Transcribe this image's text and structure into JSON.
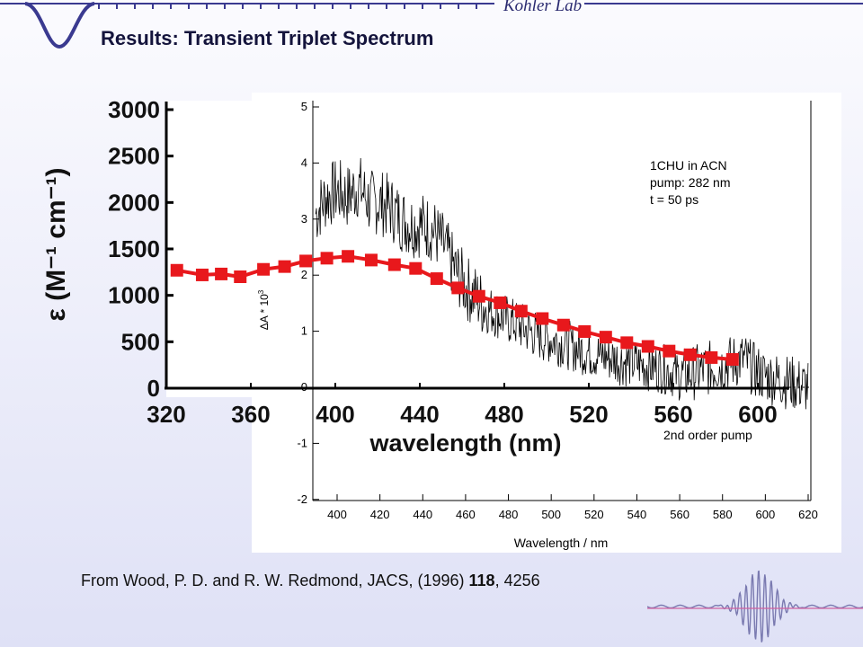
{
  "slide": {
    "title": "Results: Transient Triplet Spectrum",
    "lab_name": "Kohler Lab",
    "caption_prefix": "From Wood, P. D. and R. W. Redmond, JACS, (1996) ",
    "caption_volume": "118",
    "caption_suffix": ", 4256"
  },
  "chart_data": [
    {
      "type": "scatter",
      "title": "",
      "xlabel": "wavelength (nm)",
      "ylabel": "ε (M⁻¹ cm⁻¹)",
      "xlim": [
        320,
        620
      ],
      "ylim": [
        0,
        3000
      ],
      "x_ticks": [
        "320",
        "360",
        "400",
        "440",
        "480",
        "520",
        "560",
        "600"
      ],
      "y_ticks": [
        "0",
        "500",
        "1000",
        "1500",
        "2000",
        "2500",
        "3000"
      ],
      "series": [
        {
          "name": "",
          "color": "#e8181c",
          "marker": "square",
          "x": [
            325,
            337,
            346,
            355,
            366,
            376,
            386,
            396,
            406,
            417,
            428,
            438,
            448,
            458,
            468,
            478,
            488,
            498,
            508,
            518,
            528,
            538,
            548,
            558,
            568,
            578,
            588
          ],
          "y": [
            1270,
            1220,
            1230,
            1200,
            1280,
            1310,
            1370,
            1400,
            1420,
            1380,
            1330,
            1290,
            1180,
            1080,
            990,
            920,
            830,
            750,
            680,
            610,
            550,
            490,
            450,
            400,
            360,
            330,
            310
          ]
        }
      ]
    },
    {
      "type": "line",
      "title": "",
      "xlabel": "Wavelength / nm",
      "ylabel": "ΔA * 10",
      "ylabel_superscript": "3",
      "xlim": [
        390,
        620
      ],
      "ylim": [
        -2,
        5
      ],
      "x_ticks": [
        "400",
        "420",
        "440",
        "460",
        "480",
        "500",
        "520",
        "540",
        "560",
        "580",
        "600",
        "620"
      ],
      "y_ticks": [
        "-2",
        "-1",
        "0",
        "1",
        "2",
        "3",
        "4",
        "5"
      ],
      "annotations": [
        "1CHU in ACN",
        "pump: 282 nm",
        "t = 50 ps",
        "2nd order pump"
      ],
      "series": [
        {
          "name": "",
          "color": "#000000",
          "x": [
            390,
            395,
            400,
            405,
            410,
            415,
            420,
            425,
            430,
            435,
            440,
            445,
            450,
            455,
            460,
            465,
            470,
            475,
            480,
            485,
            490,
            495,
            500,
            505,
            510,
            515,
            520,
            525,
            530,
            535,
            540,
            545,
            550,
            555,
            560,
            565,
            570,
            575,
            580,
            585,
            590,
            595,
            600,
            605,
            610,
            615,
            620
          ],
          "y": [
            3.1,
            3.4,
            3.5,
            3.4,
            3.6,
            3.3,
            3.3,
            3.2,
            3.0,
            2.9,
            2.9,
            2.8,
            2.5,
            2.1,
            1.8,
            1.6,
            1.4,
            1.3,
            1.2,
            1.1,
            1.0,
            0.9,
            0.85,
            0.8,
            0.72,
            0.65,
            0.6,
            0.55,
            0.5,
            0.45,
            0.42,
            0.38,
            0.35,
            0.3,
            0.2,
            0.25,
            0.3,
            0.35,
            0.4,
            0.45,
            0.5,
            0.3,
            0.2,
            0.15,
            0.1,
            0.05,
            0.0
          ]
        }
      ]
    }
  ]
}
